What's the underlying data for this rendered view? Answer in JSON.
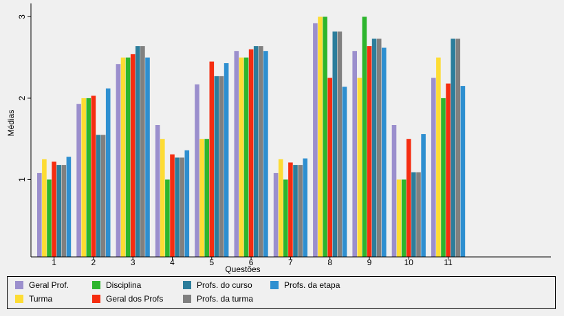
{
  "chart_data": {
    "type": "bar",
    "xlabel": "Questões",
    "ylabel": "Médias",
    "ylim": [
      0.05,
      3.05
    ],
    "yticks": [
      1,
      2,
      3
    ],
    "categories": [
      "1",
      "2",
      "3",
      "4",
      "5",
      "6",
      "7",
      "8",
      "9",
      "10",
      "11"
    ],
    "legend_position": "bottom",
    "series": [
      {
        "name": "Geral Prof.",
        "color": "#9b8fcd",
        "values": [
          1.08,
          1.93,
          2.42,
          1.67,
          2.17,
          2.58,
          1.08,
          2.92,
          2.58,
          1.67,
          2.25
        ]
      },
      {
        "name": "Turma",
        "color": "#fddc34",
        "values": [
          1.25,
          2.0,
          2.5,
          1.5,
          1.5,
          2.5,
          1.25,
          3.0,
          2.25,
          1.0,
          2.5
        ]
      },
      {
        "name": "Disciplina",
        "color": "#2db52d",
        "values": [
          1.0,
          2.0,
          2.5,
          1.0,
          1.5,
          2.5,
          1.0,
          3.0,
          3.0,
          1.0,
          2.0
        ]
      },
      {
        "name": "Geral dos Profs",
        "color": "#f52d10",
        "values": [
          1.22,
          2.03,
          2.54,
          1.31,
          2.45,
          2.6,
          1.21,
          2.25,
          2.64,
          1.5,
          2.18
        ]
      },
      {
        "name": "Profs. do curso",
        "color": "#2c7d9b",
        "values": [
          1.18,
          1.55,
          2.64,
          1.27,
          2.27,
          2.64,
          1.18,
          2.82,
          2.73,
          1.09,
          2.73
        ]
      },
      {
        "name": "Profs. da turma",
        "color": "#808080",
        "values": [
          1.18,
          1.55,
          2.64,
          1.27,
          2.27,
          2.64,
          1.18,
          2.82,
          2.73,
          1.09,
          2.73
        ]
      },
      {
        "name": "Profs. da etapa",
        "color": "#2e8fd0",
        "values": [
          1.28,
          2.12,
          2.5,
          1.36,
          2.43,
          2.58,
          1.26,
          2.14,
          2.62,
          1.56,
          2.15
        ]
      }
    ]
  }
}
